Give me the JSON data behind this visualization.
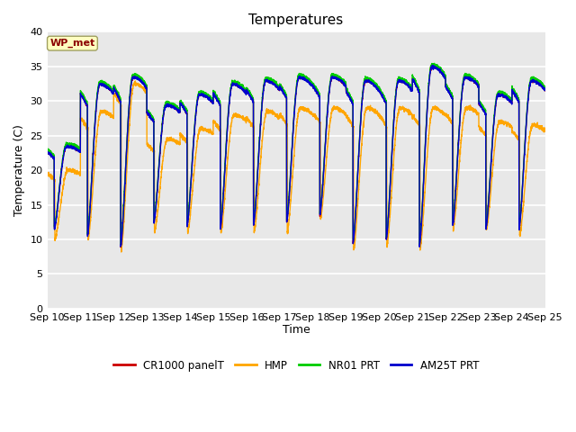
{
  "title": "Temperatures",
  "xlabel": "Time",
  "ylabel": "Temperature (C)",
  "ylim": [
    0,
    40
  ],
  "yticks": [
    0,
    5,
    10,
    15,
    20,
    25,
    30,
    35,
    40
  ],
  "x_tick_labels": [
    "Sep 10",
    "Sep 11",
    "Sep 12",
    "Sep 13",
    "Sep 14",
    "Sep 15",
    "Sep 16",
    "Sep 17",
    "Sep 18",
    "Sep 19",
    "Sep 20",
    "Sep 21",
    "Sep 22",
    "Sep 23",
    "Sep 24",
    "Sep 25"
  ],
  "station_label": "WP_met",
  "station_label_color": "#8B0000",
  "station_box_facecolor": "#FFFFC0",
  "station_box_edgecolor": "#A0A060",
  "legend_entries": [
    {
      "label": "CR1000 panelT",
      "color": "#CC0000"
    },
    {
      "label": "HMP",
      "color": "#FFA500"
    },
    {
      "label": "NR01 PRT",
      "color": "#00CC00"
    },
    {
      "label": "AM25T PRT",
      "color": "#0000CC"
    }
  ],
  "bg_color": "#E8E8E8",
  "grid_color": "#FFFFFF",
  "series_lw": 1.0,
  "title_fontsize": 11,
  "label_fontsize": 9,
  "tick_fontsize": 8,
  "day_mins_cr": [
    11.5,
    10.5,
    9.0,
    12.5,
    12.0,
    11.5,
    12.0,
    12.5,
    13.5,
    9.5,
    10.0,
    9.0,
    12.0,
    11.5,
    11.5
  ],
  "day_maxs_cr": [
    23.5,
    32.5,
    33.5,
    29.5,
    31.0,
    32.5,
    33.0,
    33.5,
    33.5,
    33.0,
    33.0,
    35.0,
    33.5,
    31.0,
    33.0
  ],
  "day_mins_hmp": [
    10.0,
    10.0,
    8.5,
    11.0,
    11.0,
    11.0,
    11.0,
    11.0,
    13.0,
    8.5,
    9.0,
    8.5,
    11.5,
    11.5,
    10.5
  ],
  "day_maxs_hmp": [
    20.0,
    28.5,
    32.5,
    24.5,
    26.0,
    28.0,
    28.5,
    29.0,
    29.0,
    29.0,
    29.0,
    29.0,
    29.0,
    27.0,
    26.5
  ],
  "peak_hour": 14.0,
  "trough_hour": 5.0
}
